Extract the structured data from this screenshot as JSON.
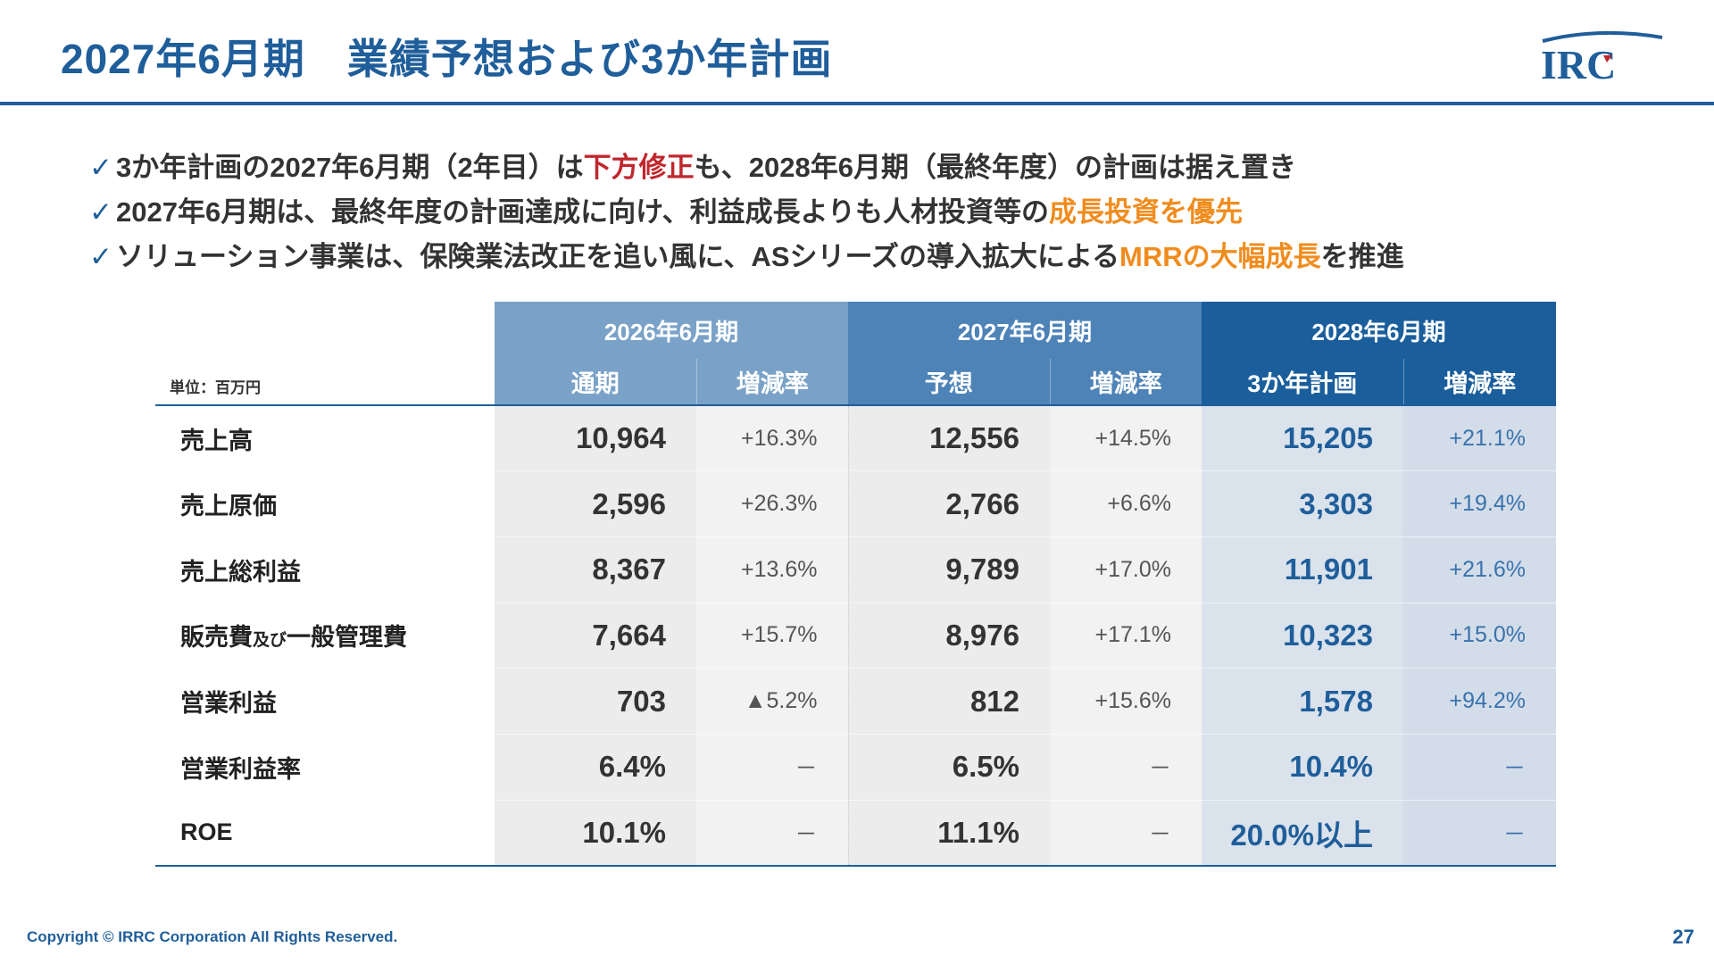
{
  "header": {
    "title": "2027年6月期　業績予想および3か年計画",
    "logo_text": "IRC"
  },
  "bullets": [
    {
      "segments": [
        {
          "text": "3か年計画の2027年6月期（2年目）は",
          "style": "normal"
        },
        {
          "text": "下方修正",
          "style": "red"
        },
        {
          "text": "も、2028年6月期（最終年度）の計画は据え置き",
          "style": "normal"
        }
      ]
    },
    {
      "segments": [
        {
          "text": "2027年6月期は、最終年度の計画達成に向け、利益成長よりも人材投資等の",
          "style": "normal"
        },
        {
          "text": "成長投資を優先",
          "style": "orange"
        }
      ]
    },
    {
      "segments": [
        {
          "text": "ソリューション事業は、保険業法改正を追い風に、ASシリーズの導入拡大による",
          "style": "normal"
        },
        {
          "text": "MRRの大幅成長",
          "style": "orange"
        },
        {
          "text": "を推進",
          "style": "normal"
        }
      ]
    }
  ],
  "table": {
    "unit": "単位：百万円",
    "years": [
      "2026年6月期",
      "2027年6月期",
      "2028年6月期"
    ],
    "subheaders": [
      "通期",
      "増減率",
      "予想",
      "増減率",
      "3か年計画",
      "増減率"
    ],
    "rows": [
      {
        "label": "売上高",
        "label_small": "",
        "label_tail": "",
        "values": [
          "10,964",
          "+16.3%",
          "12,556",
          "+14.5%",
          "15,205",
          "+21.1%"
        ]
      },
      {
        "label": "売上原価",
        "label_small": "",
        "label_tail": "",
        "values": [
          "2,596",
          "+26.3%",
          "2,766",
          "+6.6%",
          "3,303",
          "+19.4%"
        ]
      },
      {
        "label": "売上総利益",
        "label_small": "",
        "label_tail": "",
        "values": [
          "8,367",
          "+13.6%",
          "9,789",
          "+17.0%",
          "11,901",
          "+21.6%"
        ]
      },
      {
        "label": "販売費",
        "label_small": "及び",
        "label_tail": "一般管理費",
        "values": [
          "7,664",
          "+15.7%",
          "8,976",
          "+17.1%",
          "10,323",
          "+15.0%"
        ]
      },
      {
        "label": "営業利益",
        "label_small": "",
        "label_tail": "",
        "values": [
          "703",
          "▲5.2%",
          "812",
          "+15.6%",
          "1,578",
          "+94.2%"
        ]
      },
      {
        "label": "営業利益率",
        "label_small": "",
        "label_tail": "",
        "values": [
          "6.4%",
          "－",
          "6.5%",
          "－",
          "10.4%",
          "－"
        ]
      },
      {
        "label": "ROE",
        "label_small": "",
        "label_tail": "",
        "values": [
          "10.1%",
          "－",
          "11.1%",
          "－",
          "20.0%以上",
          "－"
        ]
      }
    ]
  },
  "footer": {
    "copyright": "Copyright © IRRC Corporation All Rights Reserved.",
    "page_number": "27"
  },
  "colors": {
    "brand_blue": "#1f5e9a",
    "highlight_red": "#c0272d",
    "highlight_orange": "#f08c1e"
  }
}
